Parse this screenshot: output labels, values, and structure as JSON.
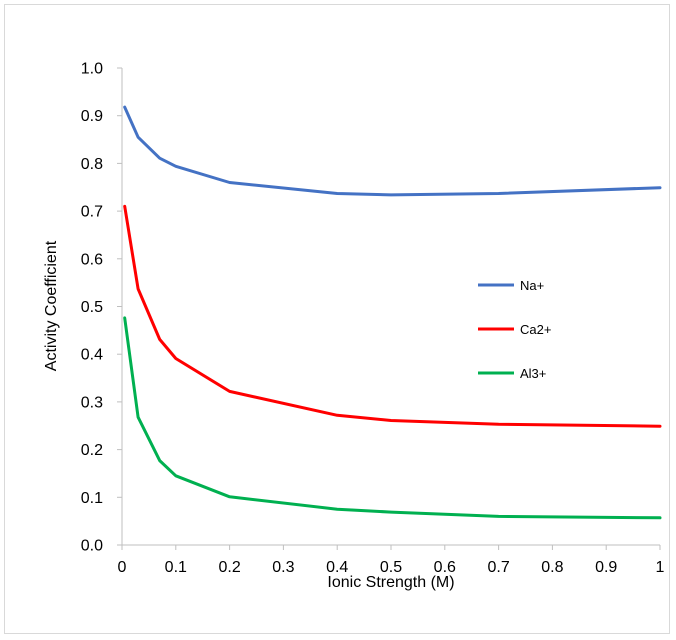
{
  "chart_data": {
    "type": "line",
    "title": "",
    "xlabel": "Ionic Strength (M)",
    "ylabel": "Activity Coefficient",
    "xlim": [
      0,
      1
    ],
    "ylim": [
      0,
      1
    ],
    "x_ticks": [
      "0",
      "0.1",
      "0.2",
      "0.3",
      "0.4",
      "0.5",
      "0.6",
      "0.7",
      "0.8",
      "0.9",
      "1"
    ],
    "y_ticks": [
      "0.0",
      "0.1",
      "0.2",
      "0.3",
      "0.4",
      "0.5",
      "0.6",
      "0.7",
      "0.8",
      "0.9",
      "1.0"
    ],
    "grid": false,
    "legend_position": "right, inside plot area",
    "x": [
      0.005,
      0.03,
      0.07,
      0.1,
      0.2,
      0.4,
      0.5,
      0.7,
      1.0
    ],
    "series": [
      {
        "name": "Na+",
        "color": "#4472C4",
        "values": [
          0.918,
          0.855,
          0.811,
          0.794,
          0.76,
          0.737,
          0.734,
          0.737,
          0.749
        ]
      },
      {
        "name": "Ca2+",
        "color": "#FF0000",
        "values": [
          0.71,
          0.537,
          0.431,
          0.391,
          0.322,
          0.272,
          0.261,
          0.253,
          0.249
        ]
      },
      {
        "name": "Al3+",
        "color": "#00B050",
        "values": [
          0.476,
          0.268,
          0.177,
          0.145,
          0.101,
          0.075,
          0.069,
          0.06,
          0.057
        ]
      }
    ]
  }
}
